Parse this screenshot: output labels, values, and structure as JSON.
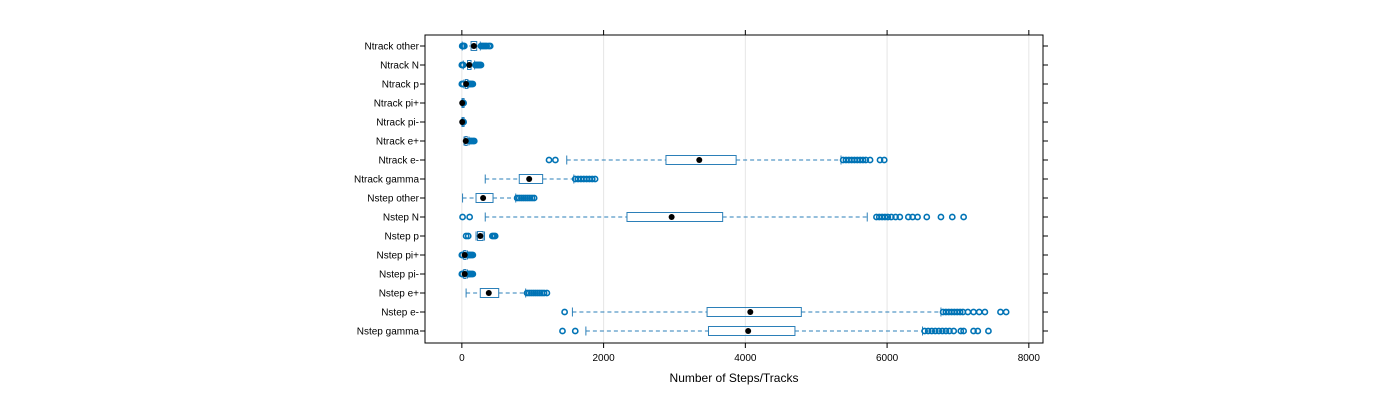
{
  "chart_data": {
    "type": "boxplot",
    "orientation": "horizontal",
    "xlabel": "Number of Steps/Tracks",
    "xlim": [
      -520,
      8200
    ],
    "xticks": [
      0,
      2000,
      4000,
      6000,
      8000
    ],
    "xtick_labels": [
      "0",
      "2000",
      "4000",
      "6000",
      "8000"
    ],
    "grid": true,
    "colors": {
      "box": "#2b7fb8",
      "whisker": "#2b7fb8",
      "outlier": "#0073b5",
      "median": "#000000",
      "grid": "#e6e6e6",
      "frame": "#000000"
    },
    "categories": [
      "Ntrack other",
      "Ntrack N",
      "Ntrack p",
      "Ntrack pi+",
      "Ntrack pi-",
      "Ntrack e+",
      "Ntrack e-",
      "Ntrack gamma",
      "Nstep other",
      "Nstep N",
      "Nstep p",
      "Nstep pi+",
      "Nstep pi-",
      "Nstep e+",
      "Nstep e-",
      "Nstep gamma"
    ],
    "boxes": [
      {
        "min": 5,
        "q1": 130,
        "median": 170,
        "q3": 210,
        "max": 260,
        "outliers": [
          5,
          15,
          25,
          35,
          270,
          290,
          310,
          330,
          350,
          380,
          400
        ]
      },
      {
        "min": 20,
        "q1": 80,
        "median": 105,
        "q3": 130,
        "max": 180,
        "outliers": [
          0,
          10,
          20,
          190,
          200,
          210,
          220,
          230,
          240,
          250,
          260,
          270
        ]
      },
      {
        "min": 30,
        "q1": 50,
        "median": 60,
        "q3": 70,
        "max": 90,
        "outliers": [
          0,
          10,
          20,
          95,
          105,
          115,
          125,
          140,
          155
        ]
      },
      {
        "min": 0,
        "q1": 3,
        "median": 5,
        "q3": 8,
        "max": 12,
        "outliers": [
          15,
          20,
          25
        ]
      },
      {
        "min": 0,
        "q1": 3,
        "median": 5,
        "q3": 8,
        "max": 12,
        "outliers": [
          15,
          20,
          25
        ]
      },
      {
        "min": 30,
        "q1": 45,
        "median": 55,
        "q3": 75,
        "max": 100,
        "outliers": [
          110,
          125,
          140,
          160,
          175
        ]
      },
      {
        "min": 1480,
        "q1": 2880,
        "median": 3350,
        "q3": 3870,
        "max": 5350,
        "outliers": [
          1230,
          1320,
          5380,
          5420,
          5460,
          5500,
          5540,
          5580,
          5620,
          5660,
          5700,
          5760,
          5900,
          5960
        ]
      },
      {
        "min": 330,
        "q1": 810,
        "median": 950,
        "q3": 1140,
        "max": 1580,
        "outliers": [
          1600,
          1640,
          1680,
          1720,
          1760,
          1800,
          1840,
          1880
        ]
      },
      {
        "min": 10,
        "q1": 200,
        "median": 300,
        "q3": 440,
        "max": 760,
        "outliers": [
          780,
          810,
          840,
          870,
          900,
          930,
          960,
          990,
          1020
        ]
      },
      {
        "min": 330,
        "q1": 2330,
        "median": 2960,
        "q3": 3680,
        "max": 5720,
        "outliers": [
          10,
          110,
          5850,
          5890,
          5930,
          5970,
          6010,
          6060,
          6120,
          6180,
          6300,
          6360,
          6430,
          6560,
          6760,
          6920,
          7080
        ]
      },
      {
        "min": 200,
        "q1": 220,
        "median": 260,
        "q3": 300,
        "max": 320,
        "outliers": [
          60,
          90,
          430,
          450,
          470
        ]
      },
      {
        "min": 20,
        "q1": 30,
        "median": 40,
        "q3": 55,
        "max": 80,
        "outliers": [
          0,
          10,
          90,
          100,
          110,
          125,
          140,
          155
        ]
      },
      {
        "min": 20,
        "q1": 30,
        "median": 40,
        "q3": 55,
        "max": 80,
        "outliers": [
          0,
          10,
          90,
          100,
          110,
          125,
          140,
          155
        ]
      },
      {
        "min": 60,
        "q1": 260,
        "median": 380,
        "q3": 520,
        "max": 900,
        "outliers": [
          920,
          950,
          980,
          1010,
          1040,
          1070,
          1100,
          1130,
          1160,
          1200
        ]
      },
      {
        "min": 1560,
        "q1": 3460,
        "median": 4070,
        "q3": 4790,
        "max": 6760,
        "outliers": [
          1450,
          6790,
          6830,
          6870,
          6910,
          6950,
          6990,
          7030,
          7070,
          7140,
          7220,
          7300,
          7380,
          7600,
          7680
        ]
      },
      {
        "min": 1750,
        "q1": 3480,
        "median": 4040,
        "q3": 4700,
        "max": 6500,
        "outliers": [
          1420,
          1600,
          6530,
          6580,
          6630,
          6680,
          6730,
          6780,
          6830,
          6880,
          6940,
          7040,
          7080,
          7220,
          7280,
          7430
        ]
      }
    ]
  }
}
